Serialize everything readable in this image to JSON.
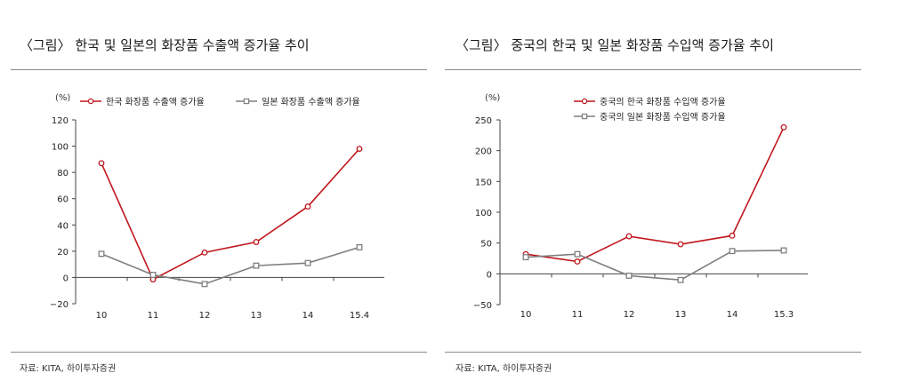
{
  "panels": [
    {
      "title": "〈그림〉 한국 및 일본의 화장품 수출액 증가율 추이",
      "source": "자료: KITA, 하이투자증권",
      "unit": "(%)",
      "chart_data": {
        "type": "line",
        "categories": [
          "10",
          "11",
          "12",
          "13",
          "14",
          "15.4"
        ],
        "series": [
          {
            "name": "한국 화장품 수출액 증가율",
            "values": [
              87,
              -1.5,
              19,
              27,
              54,
              98
            ],
            "marker": "circle",
            "color": "#c0171d"
          },
          {
            "name": "일본 화장품 수출액 증가율",
            "values": [
              18,
              2,
              -5,
              9,
              11,
              23
            ],
            "marker": "square",
            "color": "#7f7f7f"
          }
        ],
        "ylim": [
          -20,
          120
        ],
        "yticks": [
          -20,
          0,
          20,
          40,
          60,
          80,
          100,
          120
        ],
        "ytick_labels": [
          "−20",
          "0",
          "20",
          "40",
          "60",
          "80",
          "100",
          "120"
        ],
        "legend_layout": "row",
        "grid": false
      }
    },
    {
      "title": "〈그림〉 중국의 한국 및 일본 화장품 수입액 증가율 추이",
      "source": "자료: KITA, 하이투자증권",
      "unit": "(%)",
      "chart_data": {
        "type": "line",
        "categories": [
          "10",
          "11",
          "12",
          "13",
          "14",
          "15.3"
        ],
        "series": [
          {
            "name": "중국의 한국 화장품 수입액 증가율",
            "values": [
              32,
              20,
              61,
              48,
              62,
              238
            ],
            "marker": "circle",
            "color": "#c0171d"
          },
          {
            "name": "중국의 일본 화장품 수입액 증가율",
            "values": [
              27,
              32,
              -3,
              -10,
              37,
              38
            ],
            "marker": "square",
            "color": "#7f7f7f"
          }
        ],
        "ylim": [
          -50,
          250
        ],
        "yticks": [
          -50,
          0,
          50,
          100,
          150,
          200,
          250
        ],
        "ytick_labels": [
          "−50",
          "0",
          "50",
          "100",
          "150",
          "200",
          "250"
        ],
        "legend_layout": "column",
        "grid": false
      }
    }
  ]
}
